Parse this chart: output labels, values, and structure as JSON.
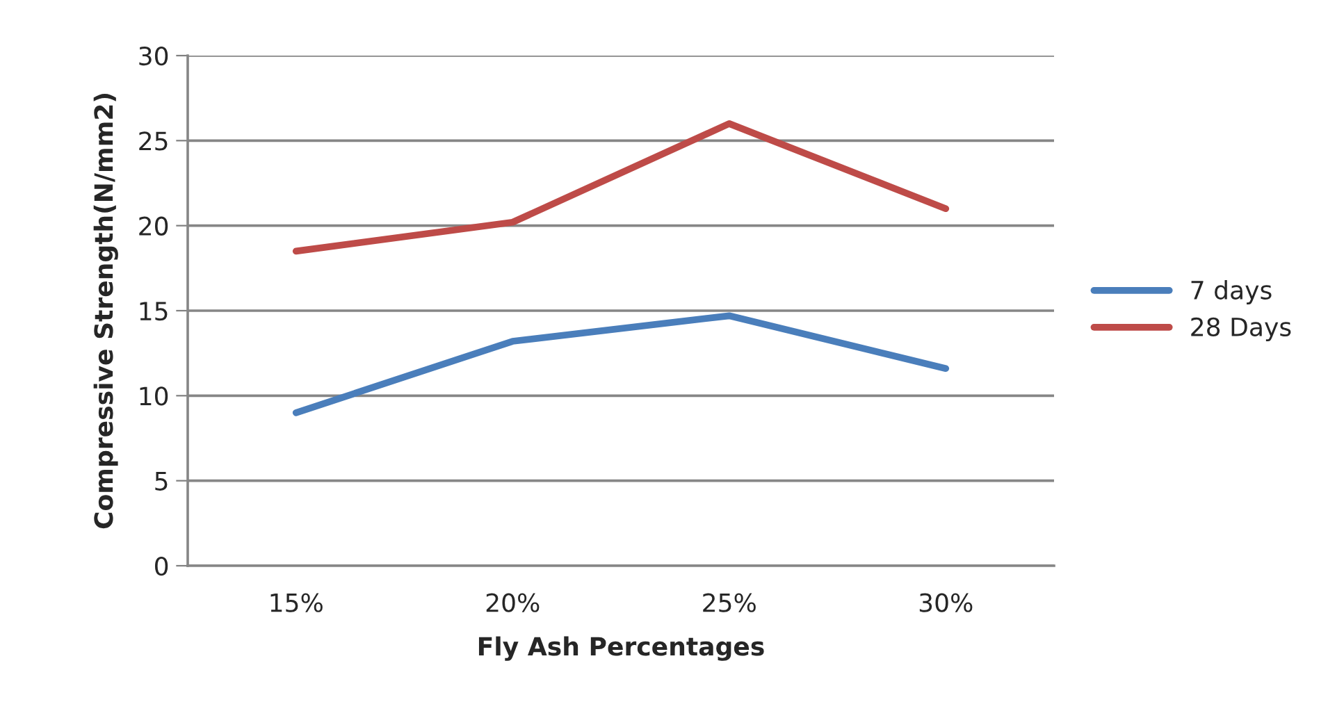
{
  "chart_data": {
    "type": "line",
    "xlabel": "Fly Ash Percentages",
    "ylabel": "Compressive Strength(N/mm2)",
    "categories": [
      "15%",
      "20%",
      "25%",
      "30%"
    ],
    "series": [
      {
        "name": "7 days",
        "color": "#4a7ebb",
        "values": [
          9.0,
          13.2,
          14.7,
          11.6
        ]
      },
      {
        "name": "28 Days",
        "color": "#be4b48",
        "values": [
          18.5,
          20.2,
          26.0,
          21.0
        ]
      }
    ],
    "ylim": [
      0,
      30
    ],
    "yticks": [
      0,
      5,
      10,
      15,
      20,
      25,
      30
    ],
    "grid": "y",
    "legend": "right",
    "marker": "none",
    "line_style": "solid"
  }
}
